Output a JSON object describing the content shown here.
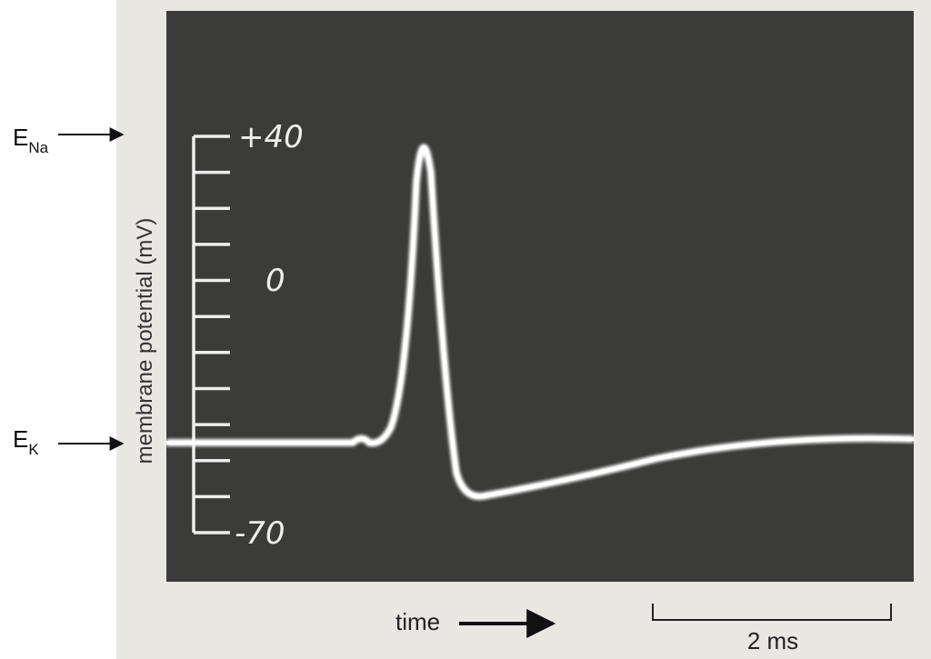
{
  "labels": {
    "e_na": {
      "letter": "E",
      "sub": "Na"
    },
    "e_k": {
      "letter": "E",
      "sub": "K"
    }
  },
  "scale": {
    "top": "+40",
    "middle": "0",
    "bottom": "-70"
  },
  "axis_label": "membrane potential (mV)",
  "time_label": "time",
  "scale_bar": "2 ms"
}
